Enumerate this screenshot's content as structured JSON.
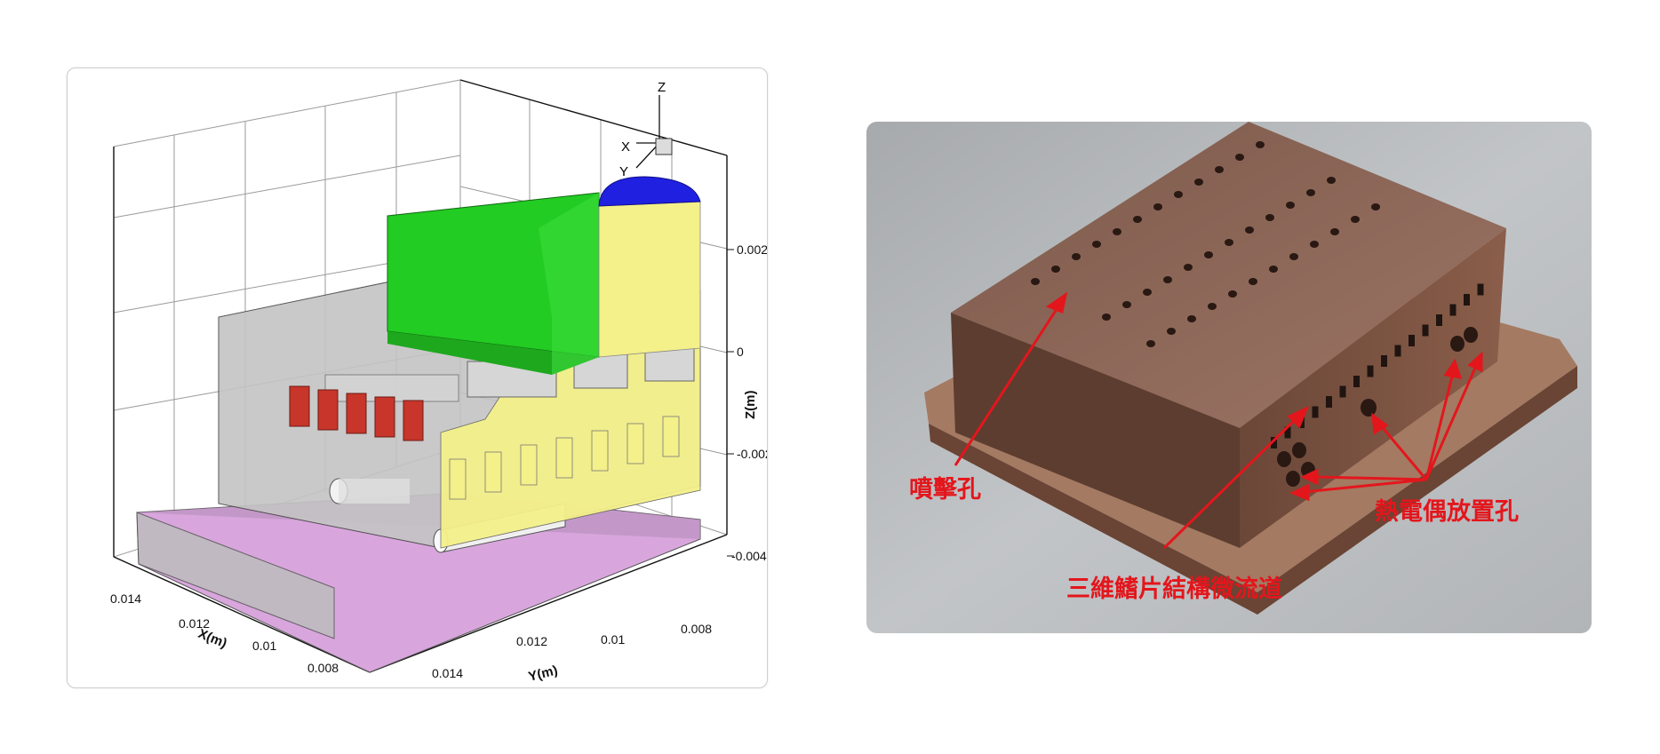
{
  "left_figure": {
    "triad": {
      "z": "Z",
      "x": "X",
      "y": "Y"
    },
    "z_axis": {
      "label": "Z(m)",
      "ticks": [
        "0.002",
        "0",
        "-0.002",
        "-0.004"
      ]
    },
    "x_axis": {
      "label": "X(m)",
      "ticks": [
        "0.014",
        "0.012",
        "0.01",
        "0.008"
      ]
    },
    "y_axis": {
      "label": "Y(m)",
      "ticks": [
        "0.014",
        "0.012",
        "0.01",
        "0.008"
      ]
    },
    "colors": {
      "green": "#22cc22",
      "yellow": "#f4f08a",
      "blue": "#2020e0",
      "pink": "#d8a6dc",
      "gray": "#c4c4c4",
      "red": "#c8352a"
    }
  },
  "right_figure": {
    "labels": {
      "impinging_hole": "噴擊孔",
      "thermocouple_holes": "熱電偶放置孔",
      "fin_channel": "三維鰭片結構微流道"
    },
    "colors": {
      "label": "#e3161c",
      "copper": "#8a6150",
      "background": "#b9bcbf"
    }
  }
}
